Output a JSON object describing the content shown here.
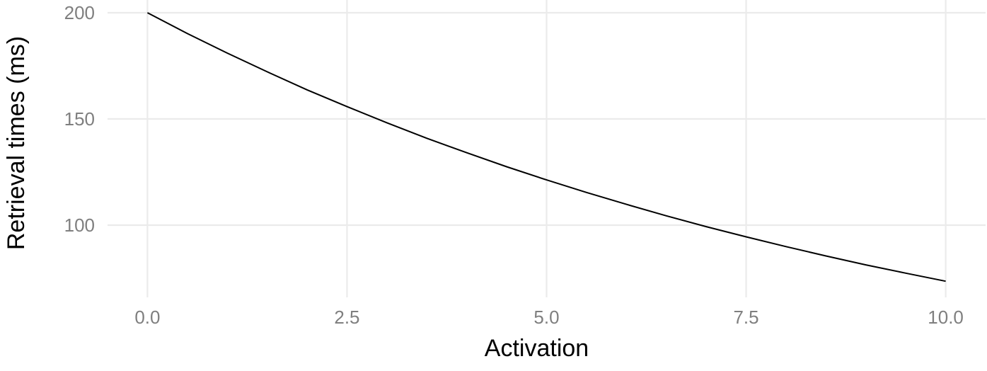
{
  "chart_data": {
    "type": "line",
    "title": "",
    "xlabel": "Activation",
    "ylabel": "Retrieval times (ms)",
    "xlim": [
      -0.5,
      10.5
    ],
    "ylim": [
      66,
      206
    ],
    "x_ticks": [
      0,
      2.5,
      5,
      7.5,
      10
    ],
    "x_tick_labels": [
      "0.0",
      "2.5",
      "5.0",
      "7.5",
      "10.0"
    ],
    "y_ticks": [
      100,
      150,
      200
    ],
    "y_tick_labels": [
      "100",
      "150",
      "200"
    ],
    "grid": true,
    "legend": "none",
    "line_color": "#000000",
    "series": [
      {
        "x": [
          0,
          0.5,
          1,
          1.5,
          2,
          2.5,
          3,
          3.5,
          4,
          4.5,
          5,
          5.5,
          6,
          6.5,
          7,
          7.5,
          8,
          8.5,
          9,
          9.5,
          10
        ],
        "y": [
          200,
          190.2,
          181.0,
          172.2,
          163.7,
          155.8,
          148.2,
          140.9,
          134.1,
          127.5,
          121.3,
          115.4,
          109.8,
          104.4,
          99.3,
          94.5,
          89.9,
          85.5,
          81.3,
          77.4,
          73.6
        ]
      }
    ]
  }
}
